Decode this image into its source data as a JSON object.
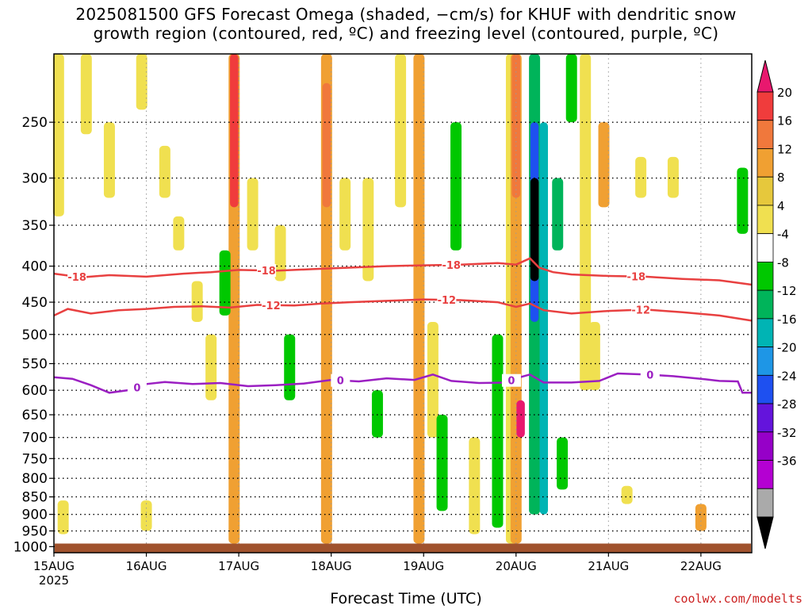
{
  "chart_data": {
    "type": "heatmap",
    "title_line1": "2025081500 GFS Forecast Omega (shaded, −cm/s) for KHUF with dendritic snow",
    "title_line2": "growth region (contoured, red, ºC) and freezing level (contoured, purple, ºC)",
    "xlabel": "Forecast Time (UTC)",
    "year_label": "2025",
    "credit": "coolwx.com/modelts",
    "x_ticks": [
      "15AUG",
      "16AUG",
      "17AUG",
      "18AUG",
      "19AUG",
      "20AUG",
      "21AUG",
      "22AUG"
    ],
    "x_range_days": [
      0,
      7.55
    ],
    "y_ticks": [
      250,
      300,
      350,
      400,
      450,
      500,
      550,
      600,
      650,
      700,
      750,
      800,
      850,
      900,
      950,
      1000
    ],
    "y_range_hpa": [
      200,
      1020
    ],
    "y_scale": "log-pressure",
    "surface_pressure_hpa": 990,
    "grid": "dotted",
    "colorbar": {
      "ticks": [
        "20",
        "16",
        "12",
        "8",
        "4",
        "-4",
        "-8",
        "-12",
        "-16",
        "-20",
        "-24",
        "-28",
        "-32",
        "-36"
      ],
      "colors": [
        "#e8186e",
        "#f03c3c",
        "#f0783c",
        "#f0a032",
        "#e6c83c",
        "#f0e050",
        "#ffffff",
        "#00c800",
        "#00b45a",
        "#00b4b4",
        "#1e96e6",
        "#1e50f0",
        "#6414dc",
        "#9600c8",
        "#b400d2",
        "#aaaaaa",
        "#000000"
      ]
    },
    "contours": [
      {
        "name": "-18",
        "color": "#e84040",
        "points": [
          [
            0,
            410
          ],
          [
            0.3,
            415
          ],
          [
            0.6,
            412
          ],
          [
            1.0,
            414
          ],
          [
            1.4,
            410
          ],
          [
            1.7,
            408
          ],
          [
            2.0,
            405
          ],
          [
            2.4,
            406
          ],
          [
            2.8,
            404
          ],
          [
            3.2,
            402
          ],
          [
            3.6,
            400
          ],
          [
            4.0,
            399
          ],
          [
            4.4,
            398
          ],
          [
            4.8,
            396
          ],
          [
            5.0,
            398
          ],
          [
            5.15,
            390
          ],
          [
            5.25,
            402
          ],
          [
            5.4,
            408
          ],
          [
            5.6,
            411
          ],
          [
            6.0,
            413
          ],
          [
            6.4,
            414
          ],
          [
            6.8,
            417
          ],
          [
            7.2,
            419
          ],
          [
            7.55,
            425
          ]
        ],
        "labels": [
          [
            0.25,
            "-18"
          ],
          [
            2.3,
            "-18"
          ],
          [
            4.3,
            "-18"
          ],
          [
            6.3,
            "-18"
          ]
        ]
      },
      {
        "name": "-12",
        "color": "#e84040",
        "points": [
          [
            0,
            470
          ],
          [
            0.15,
            460
          ],
          [
            0.4,
            467
          ],
          [
            0.7,
            462
          ],
          [
            1.0,
            460
          ],
          [
            1.3,
            457
          ],
          [
            1.6,
            456
          ],
          [
            1.9,
            458
          ],
          [
            2.2,
            454
          ],
          [
            2.6,
            455
          ],
          [
            2.9,
            452
          ],
          [
            3.2,
            450
          ],
          [
            3.6,
            448
          ],
          [
            4.0,
            446
          ],
          [
            4.4,
            447
          ],
          [
            4.8,
            450
          ],
          [
            5.0,
            457
          ],
          [
            5.15,
            452
          ],
          [
            5.3,
            462
          ],
          [
            5.6,
            467
          ],
          [
            6.0,
            463
          ],
          [
            6.4,
            461
          ],
          [
            6.8,
            465
          ],
          [
            7.2,
            470
          ],
          [
            7.55,
            478
          ]
        ],
        "labels": [
          [
            2.35,
            "-12"
          ],
          [
            4.25,
            "-12"
          ],
          [
            6.35,
            "-12"
          ]
        ]
      },
      {
        "name": "0",
        "color": "#9b1fc2",
        "points": [
          [
            0,
            575
          ],
          [
            0.2,
            578
          ],
          [
            0.4,
            590
          ],
          [
            0.6,
            605
          ],
          [
            0.8,
            600
          ],
          [
            1.0,
            588
          ],
          [
            1.2,
            584
          ],
          [
            1.5,
            588
          ],
          [
            1.8,
            586
          ],
          [
            2.1,
            592
          ],
          [
            2.4,
            590
          ],
          [
            2.7,
            587
          ],
          [
            3.0,
            580
          ],
          [
            3.3,
            583
          ],
          [
            3.6,
            577
          ],
          [
            3.9,
            580
          ],
          [
            4.1,
            570
          ],
          [
            4.3,
            582
          ],
          [
            4.6,
            586
          ],
          [
            4.9,
            585
          ],
          [
            5.0,
            577
          ],
          [
            5.15,
            570
          ],
          [
            5.3,
            585
          ],
          [
            5.6,
            585
          ],
          [
            5.9,
            582
          ],
          [
            6.1,
            568
          ],
          [
            6.4,
            570
          ],
          [
            6.7,
            573
          ],
          [
            7.0,
            578
          ],
          [
            7.2,
            582
          ],
          [
            7.4,
            583
          ],
          [
            7.45,
            605
          ],
          [
            7.55,
            605
          ]
        ],
        "labels": [
          [
            0.9,
            "0"
          ],
          [
            3.1,
            "0"
          ],
          [
            4.95,
            "0"
          ],
          [
            6.45,
            "0"
          ]
        ]
      }
    ],
    "shading_cells": [
      {
        "t": 0.05,
        "p1": 200,
        "p2": 340,
        "v": 5
      },
      {
        "t": 0.35,
        "p1": 200,
        "p2": 260,
        "v": 5
      },
      {
        "t": 0.6,
        "p1": 250,
        "p2": 320,
        "v": 5
      },
      {
        "t": 0.95,
        "p1": 200,
        "p2": 240,
        "v": 5
      },
      {
        "t": 1.2,
        "p1": 270,
        "p2": 320,
        "v": 5
      },
      {
        "t": 1.35,
        "p1": 340,
        "p2": 380,
        "v": 5
      },
      {
        "t": 1.55,
        "p1": 420,
        "p2": 480,
        "v": 5
      },
      {
        "t": 1.7,
        "p1": 500,
        "p2": 620,
        "v": 5
      },
      {
        "t": 1.95,
        "p1": 200,
        "p2": 990,
        "v": 9
      },
      {
        "t": 1.95,
        "p1": 200,
        "p2": 330,
        "v": 18
      },
      {
        "t": 1.85,
        "p1": 380,
        "p2": 470,
        "v": -6
      },
      {
        "t": 2.15,
        "p1": 300,
        "p2": 380,
        "v": 5
      },
      {
        "t": 2.45,
        "p1": 350,
        "p2": 420,
        "v": 5
      },
      {
        "t": 2.55,
        "p1": 500,
        "p2": 620,
        "v": -6
      },
      {
        "t": 2.95,
        "p1": 200,
        "p2": 990,
        "v": 9
      },
      {
        "t": 2.95,
        "p1": 220,
        "p2": 330,
        "v": 13
      },
      {
        "t": 3.15,
        "p1": 300,
        "p2": 380,
        "v": 5
      },
      {
        "t": 3.4,
        "p1": 300,
        "p2": 420,
        "v": 5
      },
      {
        "t": 3.5,
        "p1": 600,
        "p2": 700,
        "v": -6
      },
      {
        "t": 3.75,
        "p1": 200,
        "p2": 330,
        "v": 5
      },
      {
        "t": 3.95,
        "p1": 200,
        "p2": 990,
        "v": 9
      },
      {
        "t": 4.1,
        "p1": 480,
        "p2": 700,
        "v": 5
      },
      {
        "t": 4.2,
        "p1": 650,
        "p2": 890,
        "v": -6
      },
      {
        "t": 4.35,
        "p1": 250,
        "p2": 380,
        "v": -6
      },
      {
        "t": 4.55,
        "p1": 700,
        "p2": 960,
        "v": 5
      },
      {
        "t": 4.8,
        "p1": 500,
        "p2": 940,
        "v": -6
      },
      {
        "t": 4.95,
        "p1": 200,
        "p2": 990,
        "v": 5
      },
      {
        "t": 5.0,
        "p1": 200,
        "p2": 990,
        "v": 10
      },
      {
        "t": 5.0,
        "p1": 200,
        "p2": 320,
        "v": 14
      },
      {
        "t": 5.05,
        "p1": 620,
        "p2": 700,
        "v": 20
      },
      {
        "t": 5.2,
        "p1": 200,
        "p2": 900,
        "v": -10
      },
      {
        "t": 5.2,
        "p1": 250,
        "p2": 480,
        "v": -22
      },
      {
        "t": 5.2,
        "p1": 300,
        "p2": 420,
        "v": -40
      },
      {
        "t": 5.3,
        "p1": 250,
        "p2": 900,
        "v": -14
      },
      {
        "t": 5.45,
        "p1": 300,
        "p2": 380,
        "v": -10
      },
      {
        "t": 5.5,
        "p1": 700,
        "p2": 830,
        "v": -6
      },
      {
        "t": 5.6,
        "p1": 200,
        "p2": 250,
        "v": -6
      },
      {
        "t": 5.75,
        "p1": 200,
        "p2": 600,
        "v": 5
      },
      {
        "t": 5.85,
        "p1": 480,
        "p2": 600,
        "v": 5
      },
      {
        "t": 5.95,
        "p1": 250,
        "p2": 330,
        "v": 9
      },
      {
        "t": 6.35,
        "p1": 280,
        "p2": 320,
        "v": 5
      },
      {
        "t": 6.7,
        "p1": 280,
        "p2": 320,
        "v": 5
      },
      {
        "t": 7.45,
        "p1": 290,
        "p2": 360,
        "v": -6
      },
      {
        "t": 7.0,
        "p1": 870,
        "p2": 950,
        "v": 9
      },
      {
        "t": 6.2,
        "p1": 820,
        "p2": 870,
        "v": 5
      },
      {
        "t": 1.0,
        "p1": 860,
        "p2": 950,
        "v": 5
      },
      {
        "t": 0.1,
        "p1": 860,
        "p2": 960,
        "v": 5
      }
    ]
  }
}
